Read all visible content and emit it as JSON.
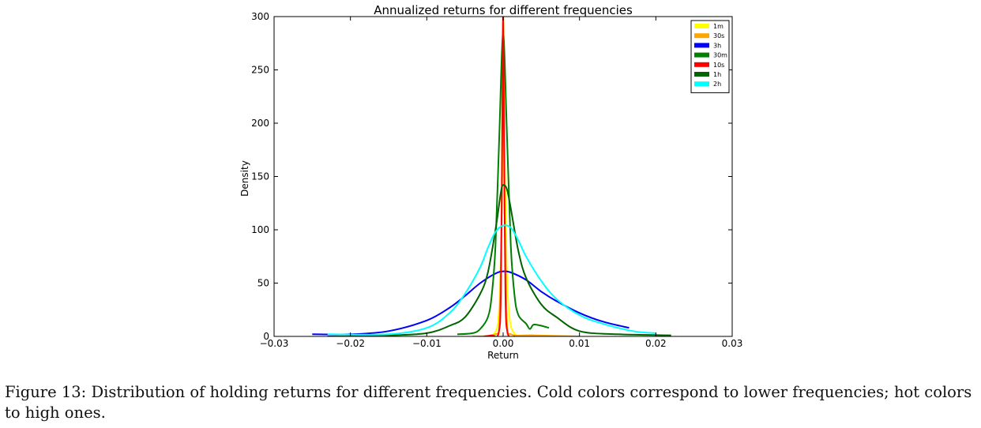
{
  "caption": "Figure 13: Distribution of holding returns for different frequencies. Cold colors correspond to lower frequencies; hot colors to high ones.",
  "chart_data": {
    "type": "line",
    "title": "Annualized returns for different frequencies",
    "xlabel": "Return",
    "ylabel": "Density",
    "xlim": [
      -0.03,
      0.03
    ],
    "ylim": [
      0,
      300
    ],
    "xticks": [
      -0.03,
      -0.02,
      -0.01,
      0.0,
      0.01,
      0.02,
      0.03
    ],
    "xtick_labels": [
      "−0.03",
      "−0.02",
      "−0.01",
      "0.00",
      "0.01",
      "0.02",
      "0.03"
    ],
    "yticks": [
      0,
      50,
      100,
      150,
      200,
      250,
      300
    ],
    "ytick_labels": [
      "0",
      "50",
      "100",
      "150",
      "200",
      "250",
      "300"
    ],
    "grid": false,
    "legend_position": "top-right",
    "series": [
      {
        "name": "1m",
        "color": "#ffff00",
        "x": [
          -0.0015,
          -0.0008,
          -0.0005,
          -0.0003,
          -0.0001,
          0.0,
          0.0002,
          0.0004,
          0.0006,
          0.001,
          0.0018
        ],
        "y": [
          0,
          8,
          30,
          80,
          160,
          230,
          170,
          90,
          40,
          10,
          0
        ]
      },
      {
        "name": "30s",
        "color": "#ffa500",
        "x": [
          -0.004,
          -0.001,
          -0.0005,
          -0.0002,
          -0.0001,
          0.0,
          0.0001,
          0.0002,
          0.0005,
          0.001,
          0.004,
          0.01
        ],
        "y": [
          0,
          2,
          15,
          120,
          260,
          300,
          260,
          120,
          15,
          2,
          1,
          0
        ]
      },
      {
        "name": "3h",
        "color": "#0000ff",
        "x": [
          -0.025,
          -0.02,
          -0.015,
          -0.01,
          -0.007,
          -0.005,
          -0.003,
          -0.001,
          0.0,
          0.001,
          0.003,
          0.005,
          0.007,
          0.01,
          0.013,
          0.0165
        ],
        "y": [
          2,
          2,
          5,
          15,
          27,
          38,
          50,
          59,
          61,
          60,
          53,
          42,
          33,
          22,
          14,
          8
        ]
      },
      {
        "name": "30m",
        "color": "#008000",
        "x": [
          -0.006,
          -0.004,
          -0.003,
          -0.002,
          -0.0015,
          -0.001,
          -0.0005,
          0.0,
          0.0005,
          0.001,
          0.0015,
          0.002,
          0.003,
          0.0035,
          0.004,
          0.005,
          0.006
        ],
        "y": [
          2,
          3,
          7,
          18,
          38,
          85,
          190,
          283,
          190,
          85,
          38,
          20,
          12,
          7,
          11,
          10,
          8
        ]
      },
      {
        "name": "10s",
        "color": "#ff0000",
        "x": [
          -0.0025,
          -0.0015,
          -0.0006,
          -0.0003,
          -0.0001,
          0.0,
          0.0001,
          0.0003,
          0.0006,
          0.0015
        ],
        "y": [
          0,
          1,
          3,
          40,
          200,
          300,
          200,
          40,
          3,
          0
        ]
      },
      {
        "name": "1h",
        "color": "#006400",
        "x": [
          -0.023,
          -0.015,
          -0.01,
          -0.007,
          -0.005,
          -0.003,
          -0.002,
          -0.001,
          -0.0003,
          0.0,
          0.0005,
          0.001,
          0.002,
          0.003,
          0.005,
          0.007,
          0.01,
          0.015,
          0.022
        ],
        "y": [
          0,
          1,
          3,
          10,
          18,
          40,
          60,
          100,
          135,
          142,
          138,
          120,
          80,
          55,
          30,
          18,
          5,
          2,
          1
        ]
      },
      {
        "name": "2h",
        "color": "#00ffff",
        "x": [
          -0.023,
          -0.015,
          -0.01,
          -0.007,
          -0.005,
          -0.003,
          -0.002,
          -0.001,
          0.0,
          0.001,
          0.002,
          0.003,
          0.005,
          0.007,
          0.01,
          0.013,
          0.017,
          0.02
        ],
        "y": [
          2,
          2,
          8,
          22,
          40,
          65,
          83,
          98,
          104,
          102,
          90,
          75,
          52,
          35,
          20,
          12,
          5,
          3
        ]
      }
    ]
  }
}
